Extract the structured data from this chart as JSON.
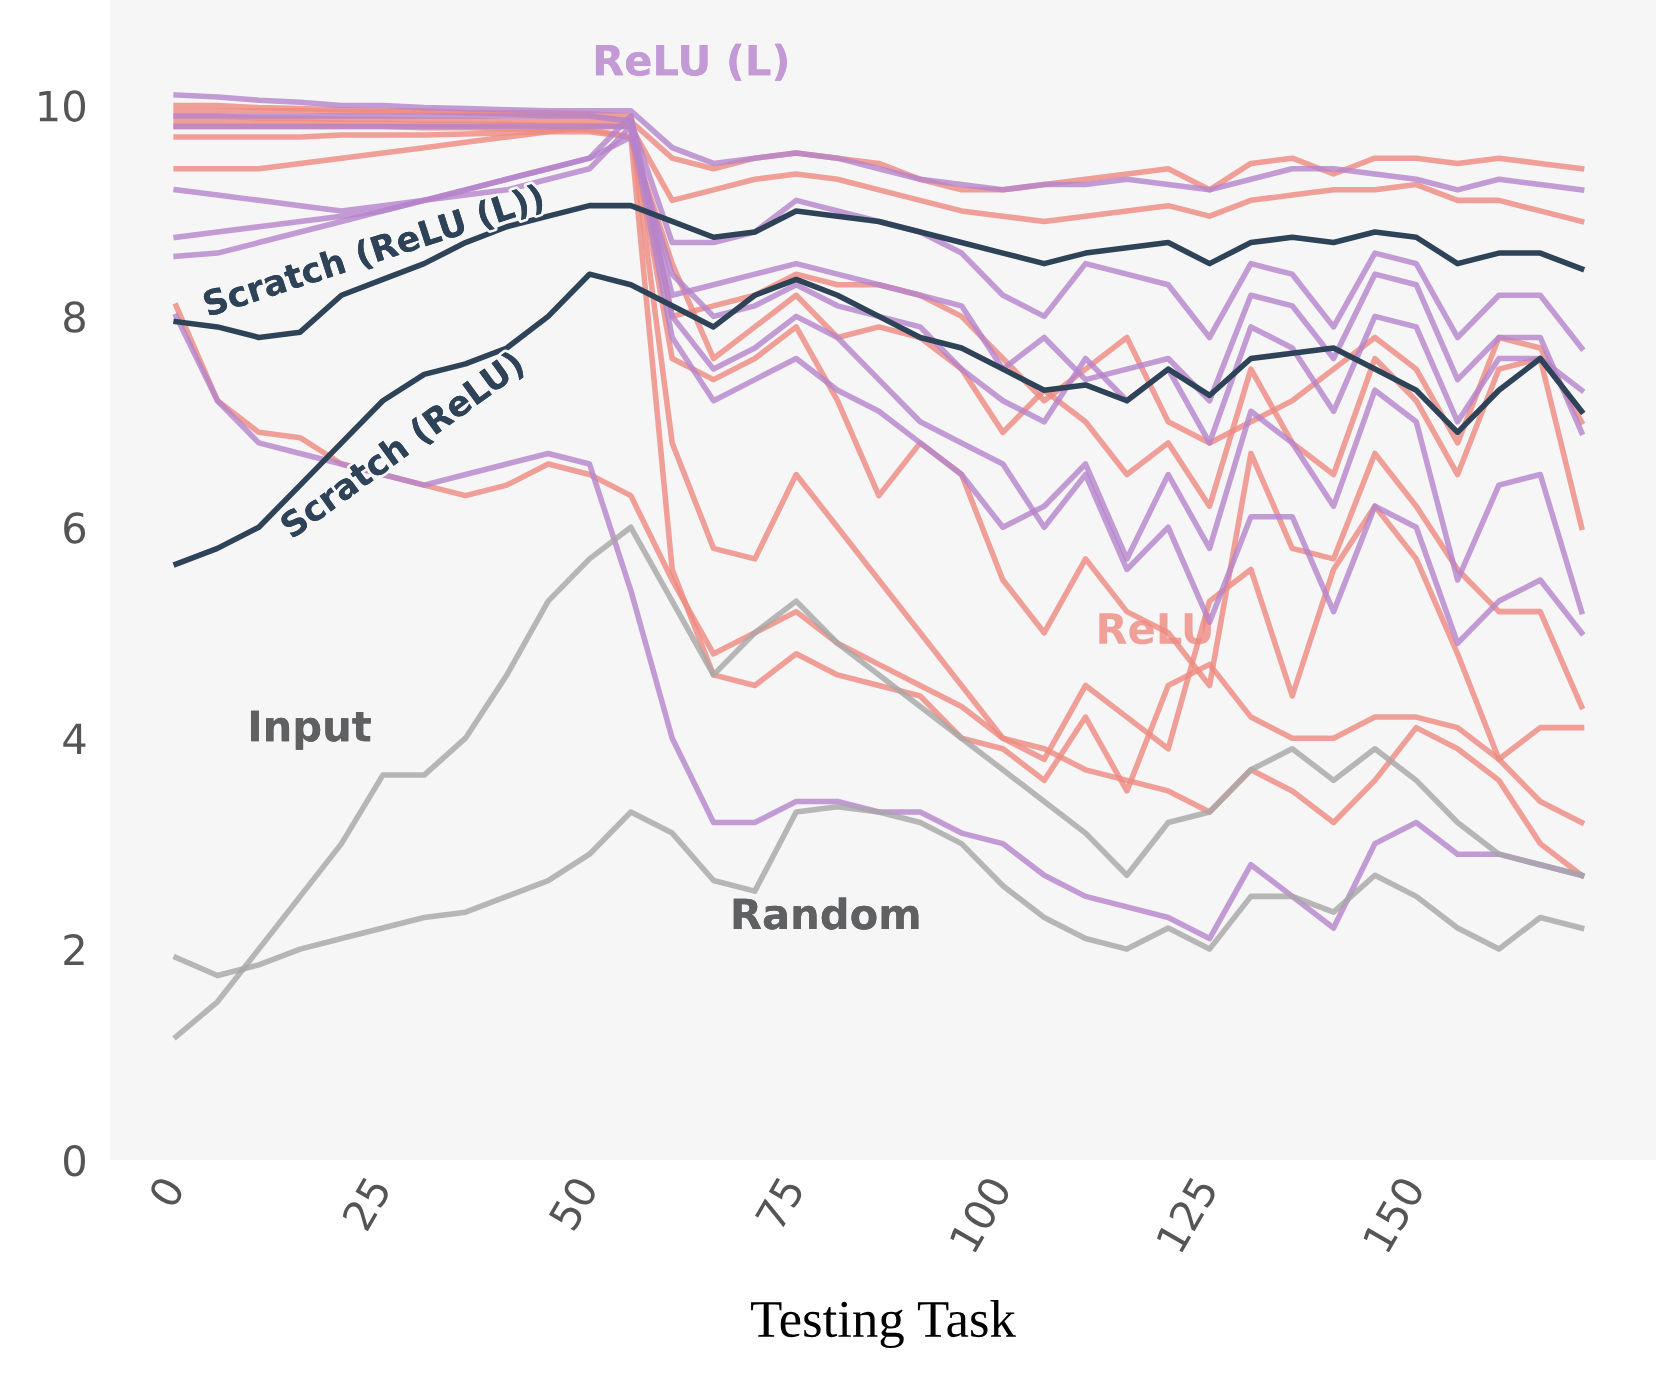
{
  "chart_data": {
    "type": "line",
    "xlabel": "Testing Task",
    "x": [
      0,
      5,
      10,
      15,
      20,
      25,
      30,
      35,
      40,
      45,
      50,
      55,
      60,
      65,
      70,
      75,
      80,
      85,
      90,
      95,
      100,
      105,
      110,
      115,
      120,
      125,
      130,
      135,
      140,
      145,
      150,
      155,
      160,
      165,
      170
    ],
    "xlim": [
      -8,
      179
    ],
    "ylim": [
      0,
      11
    ],
    "xticks": [
      0,
      25,
      50,
      75,
      100,
      125,
      150
    ],
    "yticks": [
      0,
      2,
      4,
      6,
      8,
      10
    ],
    "grid": false,
    "marker": "none",
    "line_style": "solid",
    "series": [
      {
        "color": "#ee8a80",
        "values": [
          10.0,
          10.0,
          9.98,
          9.97,
          9.96,
          9.95,
          9.95,
          9.93,
          9.92,
          9.9,
          9.9,
          9.85,
          9.5,
          9.4,
          9.5,
          9.55,
          9.5,
          9.45,
          9.3,
          9.2,
          9.2,
          9.25,
          9.3,
          9.35,
          9.4,
          9.2,
          9.45,
          9.5,
          9.35,
          9.5,
          9.5,
          9.45,
          9.5,
          9.45,
          9.4
        ]
      },
      {
        "color": "#ee8a80",
        "values": [
          9.4,
          9.4,
          9.4,
          9.45,
          9.5,
          9.55,
          9.6,
          9.65,
          9.7,
          9.75,
          9.8,
          9.8,
          9.1,
          9.2,
          9.3,
          9.35,
          9.3,
          9.2,
          9.1,
          9.0,
          8.95,
          8.9,
          8.95,
          9.0,
          9.05,
          8.95,
          9.1,
          9.15,
          9.2,
          9.2,
          9.25,
          9.1,
          9.1,
          9.0,
          8.9
        ]
      },
      {
        "color": "#ee8a80",
        "values": [
          8.1,
          7.2,
          6.9,
          6.85,
          6.6,
          6.5,
          6.4,
          6.3,
          6.4,
          6.6,
          6.5,
          6.3,
          5.5,
          4.8,
          5.0,
          5.2,
          4.9,
          4.7,
          4.5,
          4.3,
          4.0,
          3.9,
          3.7,
          3.6,
          3.5,
          3.3,
          3.7,
          3.5,
          3.2,
          3.6,
          4.1,
          3.9,
          3.6,
          3.0,
          2.7
        ]
      },
      {
        "color": "#ee8a80",
        "values": [
          9.9,
          9.9,
          9.88,
          9.88,
          9.87,
          9.87,
          9.86,
          9.86,
          9.85,
          9.85,
          9.85,
          9.8,
          6.8,
          5.8,
          5.7,
          6.5,
          6.0,
          5.5,
          5.0,
          4.5,
          4.0,
          3.8,
          4.5,
          4.2,
          3.9,
          5.3,
          5.6,
          4.4,
          5.6,
          6.2,
          5.7,
          4.8,
          3.8,
          3.4,
          3.2
        ]
      },
      {
        "color": "#ee8a80",
        "values": [
          9.85,
          9.85,
          9.84,
          9.84,
          9.83,
          9.83,
          9.82,
          9.82,
          9.82,
          9.81,
          9.81,
          9.8,
          7.6,
          7.4,
          7.6,
          7.9,
          7.2,
          6.3,
          6.8,
          6.5,
          5.5,
          5.0,
          5.7,
          5.2,
          5.0,
          4.5,
          6.7,
          5.8,
          5.7,
          6.7,
          6.2,
          5.6,
          5.2,
          5.2,
          4.3
        ]
      },
      {
        "color": "#ee8a80",
        "values": [
          9.7,
          9.7,
          9.7,
          9.7,
          9.72,
          9.72,
          9.72,
          9.73,
          9.74,
          9.75,
          9.75,
          9.7,
          8.5,
          7.6,
          7.9,
          8.2,
          7.8,
          7.9,
          7.8,
          7.5,
          6.9,
          7.3,
          7.0,
          6.5,
          6.8,
          6.2,
          7.5,
          6.8,
          6.5,
          7.6,
          7.2,
          6.5,
          7.5,
          7.6,
          6.0
        ]
      },
      {
        "color": "#ee8a80",
        "values": [
          9.8,
          9.8,
          9.8,
          9.8,
          9.8,
          9.8,
          9.79,
          9.79,
          9.78,
          9.78,
          9.77,
          9.7,
          5.6,
          4.6,
          4.5,
          4.8,
          4.6,
          4.5,
          4.4,
          4.0,
          3.9,
          3.6,
          4.2,
          3.5,
          4.5,
          4.7,
          4.2,
          4.0,
          4.0,
          4.2,
          4.2,
          4.1,
          3.8,
          4.1,
          4.1
        ]
      },
      {
        "color": "#ee8a80",
        "values": [
          9.95,
          9.95,
          9.95,
          9.95,
          9.94,
          9.94,
          9.94,
          9.93,
          9.93,
          9.93,
          9.92,
          9.9,
          8.0,
          8.1,
          8.2,
          8.4,
          8.3,
          8.3,
          8.2,
          8.0,
          7.6,
          7.2,
          7.5,
          7.8,
          7.0,
          6.8,
          7.0,
          7.2,
          7.5,
          7.8,
          7.5,
          6.8,
          7.8,
          7.7,
          7.0
        ]
      },
      {
        "color": "#b583cc",
        "values": [
          10.1,
          10.08,
          10.05,
          10.03,
          10.0,
          10.0,
          9.98,
          9.97,
          9.96,
          9.95,
          9.95,
          9.95,
          9.6,
          9.45,
          9.5,
          9.55,
          9.5,
          9.4,
          9.3,
          9.25,
          9.2,
          9.25,
          9.25,
          9.3,
          9.25,
          9.2,
          9.3,
          9.4,
          9.4,
          9.35,
          9.3,
          9.2,
          9.3,
          9.25,
          9.2
        ]
      },
      {
        "color": "#b583cc",
        "values": [
          8.0,
          7.2,
          6.8,
          6.7,
          6.6,
          6.5,
          6.4,
          6.5,
          6.6,
          6.7,
          6.6,
          5.4,
          4.0,
          3.2,
          3.2,
          3.4,
          3.4,
          3.3,
          3.3,
          3.1,
          3.0,
          2.7,
          2.5,
          2.4,
          2.3,
          2.1,
          2.8,
          2.5,
          2.2,
          3.0,
          3.2,
          2.9,
          2.9,
          2.8,
          2.7
        ]
      },
      {
        "color": "#b583cc",
        "values": [
          8.75,
          8.8,
          8.85,
          8.9,
          8.95,
          9.0,
          9.1,
          9.2,
          9.3,
          9.4,
          9.5,
          9.7,
          8.4,
          8.0,
          8.1,
          8.3,
          8.1,
          8.0,
          7.9,
          7.5,
          7.2,
          7.0,
          7.6,
          7.2,
          7.5,
          6.8,
          7.9,
          7.7,
          7.1,
          8.0,
          7.9,
          7.0,
          7.6,
          7.6,
          7.3
        ]
      },
      {
        "color": "#b583cc",
        "values": [
          8.57,
          8.6,
          8.7,
          8.8,
          8.9,
          9.0,
          9.1,
          9.15,
          9.2,
          9.3,
          9.4,
          9.8,
          7.8,
          7.2,
          7.4,
          7.6,
          7.3,
          7.1,
          6.8,
          6.5,
          6.0,
          6.2,
          6.6,
          5.7,
          6.5,
          5.8,
          7.1,
          6.8,
          6.2,
          7.3,
          7.0,
          5.5,
          6.4,
          6.5,
          5.2
        ]
      },
      {
        "color": "#b583cc",
        "values": [
          9.9,
          9.9,
          9.9,
          9.9,
          9.9,
          9.9,
          9.9,
          9.9,
          9.9,
          9.9,
          9.9,
          9.85,
          8.7,
          8.7,
          8.8,
          9.1,
          9.0,
          8.9,
          8.8,
          8.6,
          8.2,
          8.0,
          8.5,
          8.4,
          8.3,
          7.8,
          8.5,
          8.4,
          7.9,
          8.6,
          8.5,
          7.8,
          8.2,
          8.2,
          7.7
        ]
      },
      {
        "color": "#b583cc",
        "values": [
          9.2,
          9.15,
          9.1,
          9.05,
          9.0,
          9.05,
          9.1,
          9.2,
          9.3,
          9.4,
          9.5,
          9.9,
          8.0,
          7.5,
          7.7,
          8.0,
          7.8,
          7.4,
          7.0,
          6.8,
          6.6,
          6.0,
          6.5,
          5.6,
          6.0,
          5.1,
          6.1,
          6.1,
          5.2,
          6.2,
          6.0,
          4.9,
          5.3,
          5.5,
          5.0
        ]
      },
      {
        "color": "#b583cc",
        "values": [
          9.8,
          9.8,
          9.8,
          9.8,
          9.8,
          9.8,
          9.8,
          9.8,
          9.8,
          9.8,
          9.8,
          9.8,
          8.2,
          8.3,
          8.4,
          8.5,
          8.4,
          8.3,
          8.2,
          8.1,
          7.5,
          7.8,
          7.4,
          7.5,
          7.6,
          7.2,
          8.2,
          8.1,
          7.6,
          8.4,
          8.3,
          7.4,
          7.8,
          7.8,
          6.9
        ]
      },
      {
        "color": "#2e4357",
        "values": [
          7.95,
          7.9,
          7.8,
          7.85,
          8.2,
          8.35,
          8.5,
          8.7,
          8.85,
          8.95,
          9.05,
          9.05,
          8.9,
          8.75,
          8.8,
          9.0,
          8.95,
          8.9,
          8.8,
          8.7,
          8.6,
          8.5,
          8.6,
          8.65,
          8.7,
          8.5,
          8.7,
          8.75,
          8.7,
          8.8,
          8.75,
          8.5,
          8.6,
          8.6,
          8.45
        ]
      },
      {
        "color": "#2e4357",
        "values": [
          5.65,
          5.8,
          6.0,
          6.4,
          6.8,
          7.2,
          7.45,
          7.55,
          7.7,
          8.0,
          8.4,
          8.3,
          8.1,
          7.9,
          8.2,
          8.35,
          8.2,
          8.0,
          7.8,
          7.7,
          7.5,
          7.3,
          7.35,
          7.2,
          7.5,
          7.25,
          7.6,
          7.65,
          7.7,
          7.5,
          7.3,
          6.9,
          7.3,
          7.6,
          7.1
        ]
      },
      {
        "color": "#a6a6a6",
        "values": [
          1.17,
          1.5,
          2.0,
          2.5,
          3.0,
          3.65,
          3.65,
          4.0,
          4.6,
          5.3,
          5.7,
          6.0,
          5.3,
          4.6,
          5.0,
          5.3,
          4.9,
          4.6,
          4.3,
          4.0,
          3.7,
          3.4,
          3.1,
          2.7,
          3.2,
          3.3,
          3.7,
          3.9,
          3.6,
          3.9,
          3.6,
          3.2,
          2.9,
          2.8,
          2.7
        ]
      },
      {
        "color": "#a6a6a6",
        "values": [
          1.92,
          1.75,
          1.85,
          2.0,
          2.1,
          2.2,
          2.3,
          2.35,
          2.5,
          2.65,
          2.9,
          3.3,
          3.1,
          2.65,
          2.55,
          3.3,
          3.35,
          3.3,
          3.2,
          3.0,
          2.6,
          2.3,
          2.1,
          2.0,
          2.2,
          2.0,
          2.5,
          2.5,
          2.35,
          2.7,
          2.5,
          2.2,
          2.0,
          2.3,
          2.2
        ]
      }
    ],
    "annotations": [
      "ReLU (L)",
      "ReLU",
      "Scratch (ReLU (L))",
      "Scratch (ReLU)",
      "Input",
      "Random"
    ]
  }
}
